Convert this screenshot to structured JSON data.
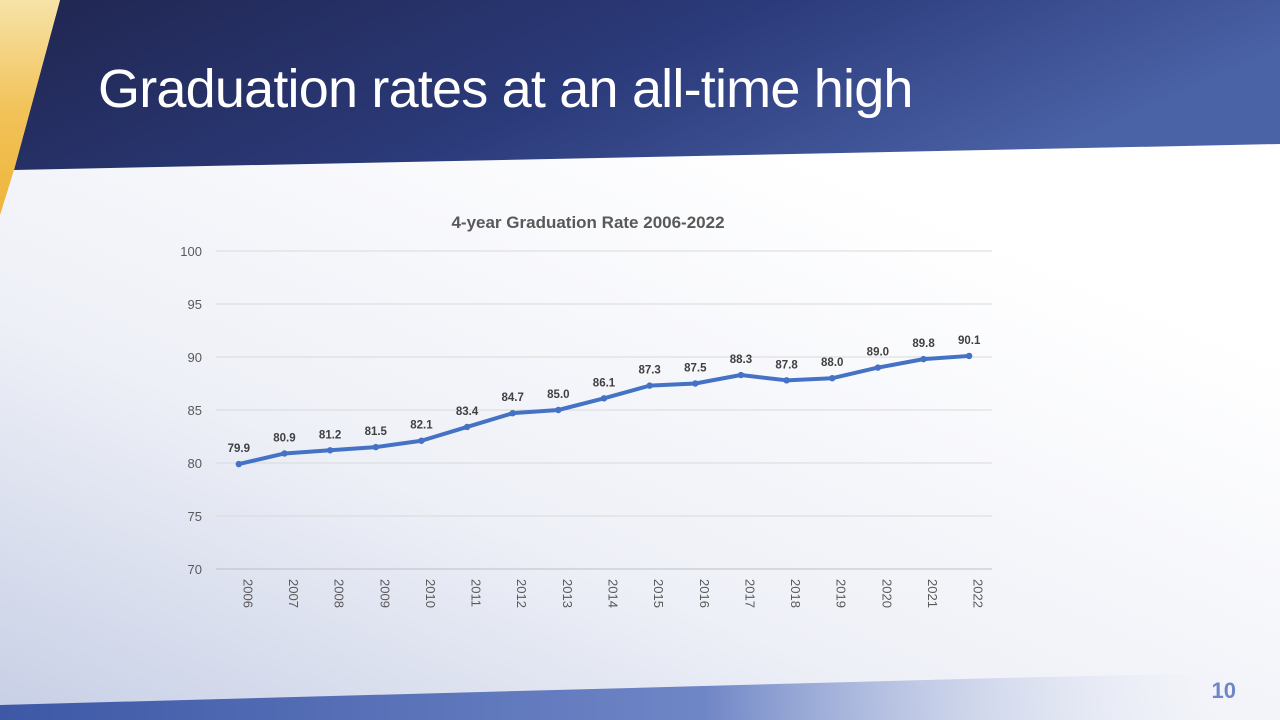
{
  "slide": {
    "title": "Graduation rates at an all-time high",
    "page_number": "10"
  },
  "colors": {
    "header_dark": "#232a5c",
    "header_light": "#445fa3",
    "accent_gold": "#f2bd41",
    "line": "#4472c4",
    "page_number": "#6f86c6"
  },
  "chart_data": {
    "type": "line",
    "title": "4-year Graduation  Rate 2006-2022",
    "categories": [
      "2006",
      "2007",
      "2008",
      "2009",
      "2010",
      "2011",
      "2012",
      "2013",
      "2014",
      "2015",
      "2016",
      "2017",
      "2018",
      "2019",
      "2020",
      "2021",
      "2022"
    ],
    "series": [
      {
        "values": [
          79.9,
          80.9,
          81.2,
          81.5,
          82.1,
          83.4,
          84.7,
          85.0,
          86.1,
          87.3,
          87.5,
          88.3,
          87.8,
          88.0,
          89.0,
          89.8,
          90.1
        ],
        "labels": [
          "79.9",
          "80.9",
          "81.2",
          "81.5",
          "82.1",
          "83.4",
          "84.7",
          "85.0",
          "86.1",
          "87.3",
          "87.5",
          "88.3",
          "87.8",
          "88.0",
          "89.0",
          "89.8",
          "90.1"
        ],
        "color": "#4472c4"
      }
    ],
    "ylim": [
      70,
      100
    ],
    "yticks": [
      "70",
      "75",
      "80",
      "85",
      "90",
      "95",
      "100"
    ],
    "xlabel": "",
    "ylabel": "",
    "grid": true,
    "legend": "none"
  }
}
